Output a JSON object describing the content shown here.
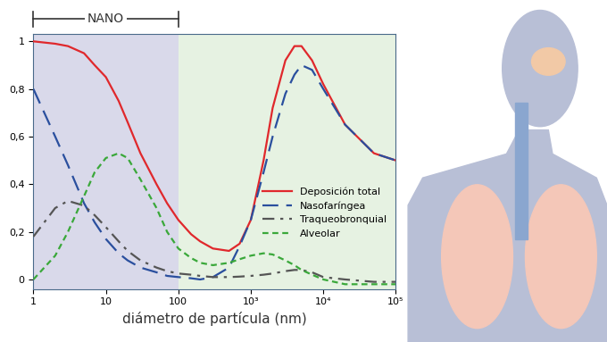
{
  "chart_data": {
    "type": "line",
    "x_label": "diámetro de partícula (nm)",
    "annotations": [
      {
        "text": "NANO",
        "x_range": [
          1,
          100
        ]
      }
    ],
    "x": [
      1,
      2,
      3,
      5,
      7,
      10,
      15,
      20,
      30,
      50,
      70,
      100,
      150,
      200,
      300,
      500,
      700,
      1000,
      1500,
      2000,
      3000,
      4000,
      5000,
      7000,
      10000,
      20000,
      50000,
      100000
    ],
    "series": [
      {
        "name": "Deposición total",
        "color": "#e0282c",
        "line_style": "solid",
        "values": [
          1.0,
          0.99,
          0.98,
          0.95,
          0.9,
          0.85,
          0.75,
          0.66,
          0.53,
          0.4,
          0.32,
          0.25,
          0.19,
          0.16,
          0.13,
          0.12,
          0.15,
          0.25,
          0.5,
          0.72,
          0.92,
          0.98,
          0.98,
          0.92,
          0.82,
          0.65,
          0.53,
          0.5
        ]
      },
      {
        "name": "Nasofaríngea",
        "color": "#2a4f9e",
        "line_style": "dashed",
        "values": [
          0.8,
          0.6,
          0.48,
          0.32,
          0.24,
          0.17,
          0.11,
          0.08,
          0.05,
          0.03,
          0.015,
          0.01,
          0.005,
          0.0,
          0.01,
          0.05,
          0.14,
          0.25,
          0.45,
          0.6,
          0.78,
          0.86,
          0.9,
          0.88,
          0.8,
          0.65,
          0.53,
          0.5
        ]
      },
      {
        "name": "Traqueobronquial",
        "color": "#555555",
        "line_style": "dashdot",
        "values": [
          0.18,
          0.3,
          0.33,
          0.31,
          0.27,
          0.22,
          0.16,
          0.12,
          0.08,
          0.05,
          0.035,
          0.025,
          0.02,
          0.015,
          0.01,
          0.01,
          0.012,
          0.015,
          0.02,
          0.025,
          0.035,
          0.04,
          0.04,
          0.03,
          0.01,
          0.0,
          -0.01,
          -0.01
        ]
      },
      {
        "name": "Alveolar",
        "color": "#3aa83a",
        "line_style": "dotted",
        "values": [
          0.0,
          0.1,
          0.2,
          0.35,
          0.45,
          0.51,
          0.53,
          0.51,
          0.42,
          0.3,
          0.2,
          0.13,
          0.09,
          0.07,
          0.06,
          0.07,
          0.085,
          0.1,
          0.11,
          0.105,
          0.08,
          0.06,
          0.04,
          0.02,
          0.0,
          -0.02,
          -0.02,
          -0.02
        ]
      }
    ],
    "log": "x",
    "xlim": [
      1,
      100000
    ],
    "xticks": [
      1,
      10,
      100,
      {
        "value": 1000,
        "label": "10³"
      },
      {
        "value": 10000,
        "label": "10⁴"
      },
      {
        "value": 100000,
        "label": "10⁵"
      }
    ],
    "ylim": [
      -0.04,
      1.03
    ],
    "yticks": [
      0,
      {
        "value": 0.2,
        "label": "0,2"
      },
      {
        "value": 0.4,
        "label": "0,4"
      },
      {
        "value": 0.6,
        "label": "0,6"
      },
      {
        "value": 0.8,
        "label": "0,8"
      },
      1
    ],
    "grid": false,
    "legend": "center right"
  }
}
